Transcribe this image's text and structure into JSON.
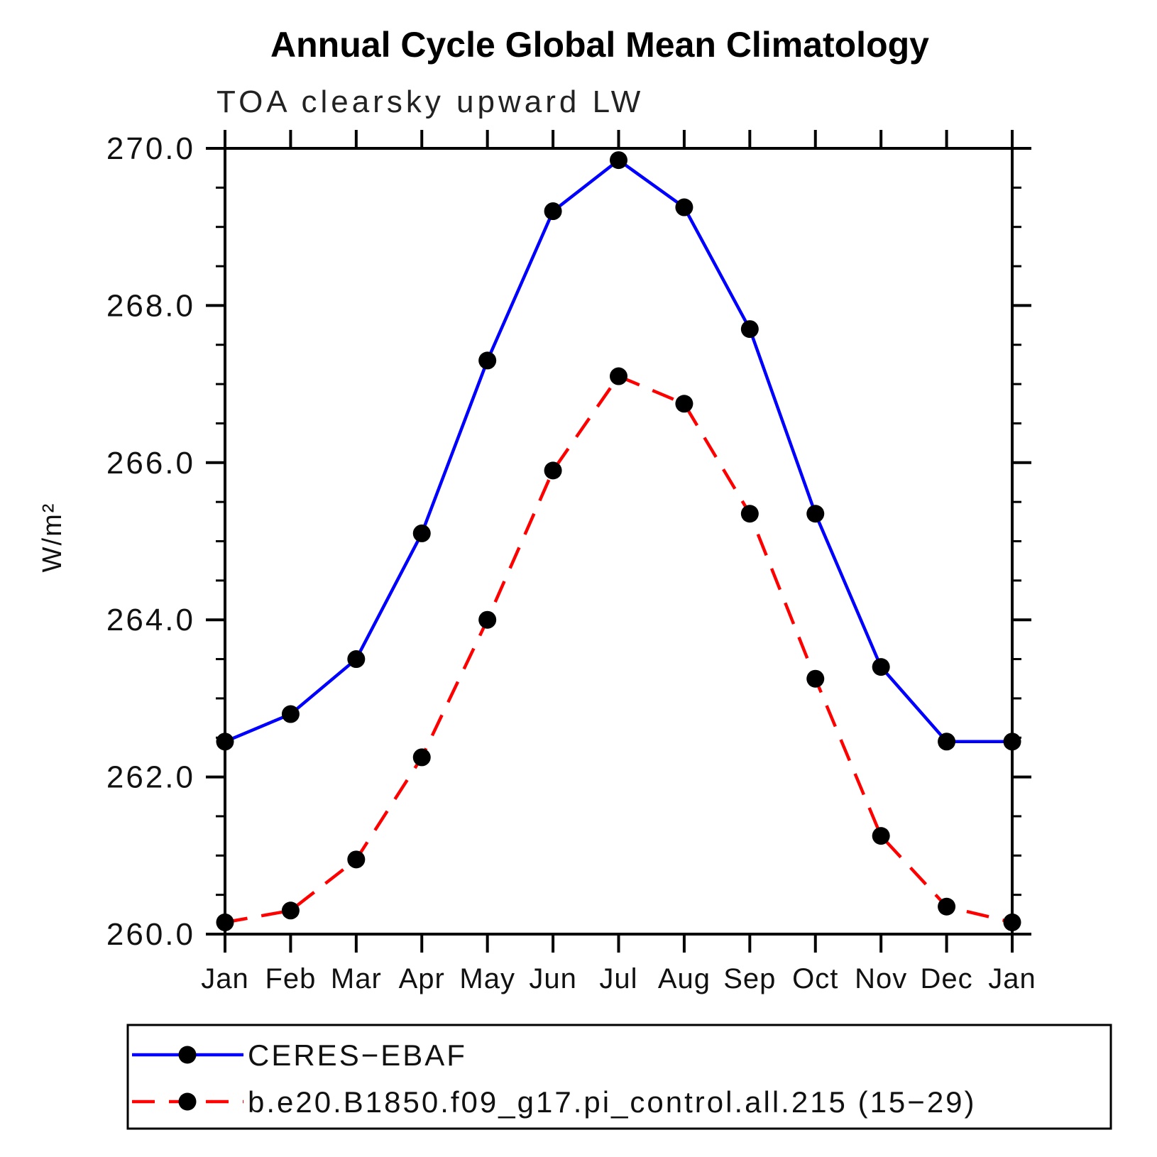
{
  "page": {
    "title": "Annual Cycle Global Mean Climatology",
    "subtitle": "TOA clearsky upward LW"
  },
  "chart_data": {
    "type": "line",
    "x_categories": [
      "Jan",
      "Feb",
      "Mar",
      "Apr",
      "May",
      "Jun",
      "Jul",
      "Aug",
      "Sep",
      "Oct",
      "Nov",
      "Dec",
      "Jan"
    ],
    "ylabel": "W/m²",
    "ylim": [
      260.0,
      270.0
    ],
    "y_major_step": 2.0,
    "y_minor_step": 0.5,
    "y_tick_labels": [
      "260.0",
      "262.0",
      "264.0",
      "266.0",
      "268.0",
      "270.0"
    ],
    "grid": false,
    "legend_position": "bottom",
    "series": [
      {
        "name": "CERES−EBAF",
        "color": "#0000ff",
        "line_style": "solid",
        "marker": "circle",
        "marker_color": "#000000",
        "values": [
          262.45,
          262.8,
          263.5,
          265.1,
          267.3,
          269.2,
          269.85,
          269.25,
          267.7,
          265.35,
          263.4,
          262.45,
          262.45
        ]
      },
      {
        "name": "b.e20.B1850.f09_g17.pi_control.all.215 (15−29)",
        "color": "#ff0000",
        "line_style": "dashed",
        "marker": "circle",
        "marker_color": "#000000",
        "values": [
          260.15,
          260.3,
          260.95,
          262.25,
          264.0,
          265.9,
          267.1,
          266.75,
          265.35,
          263.25,
          261.25,
          260.35,
          260.15
        ]
      }
    ]
  }
}
